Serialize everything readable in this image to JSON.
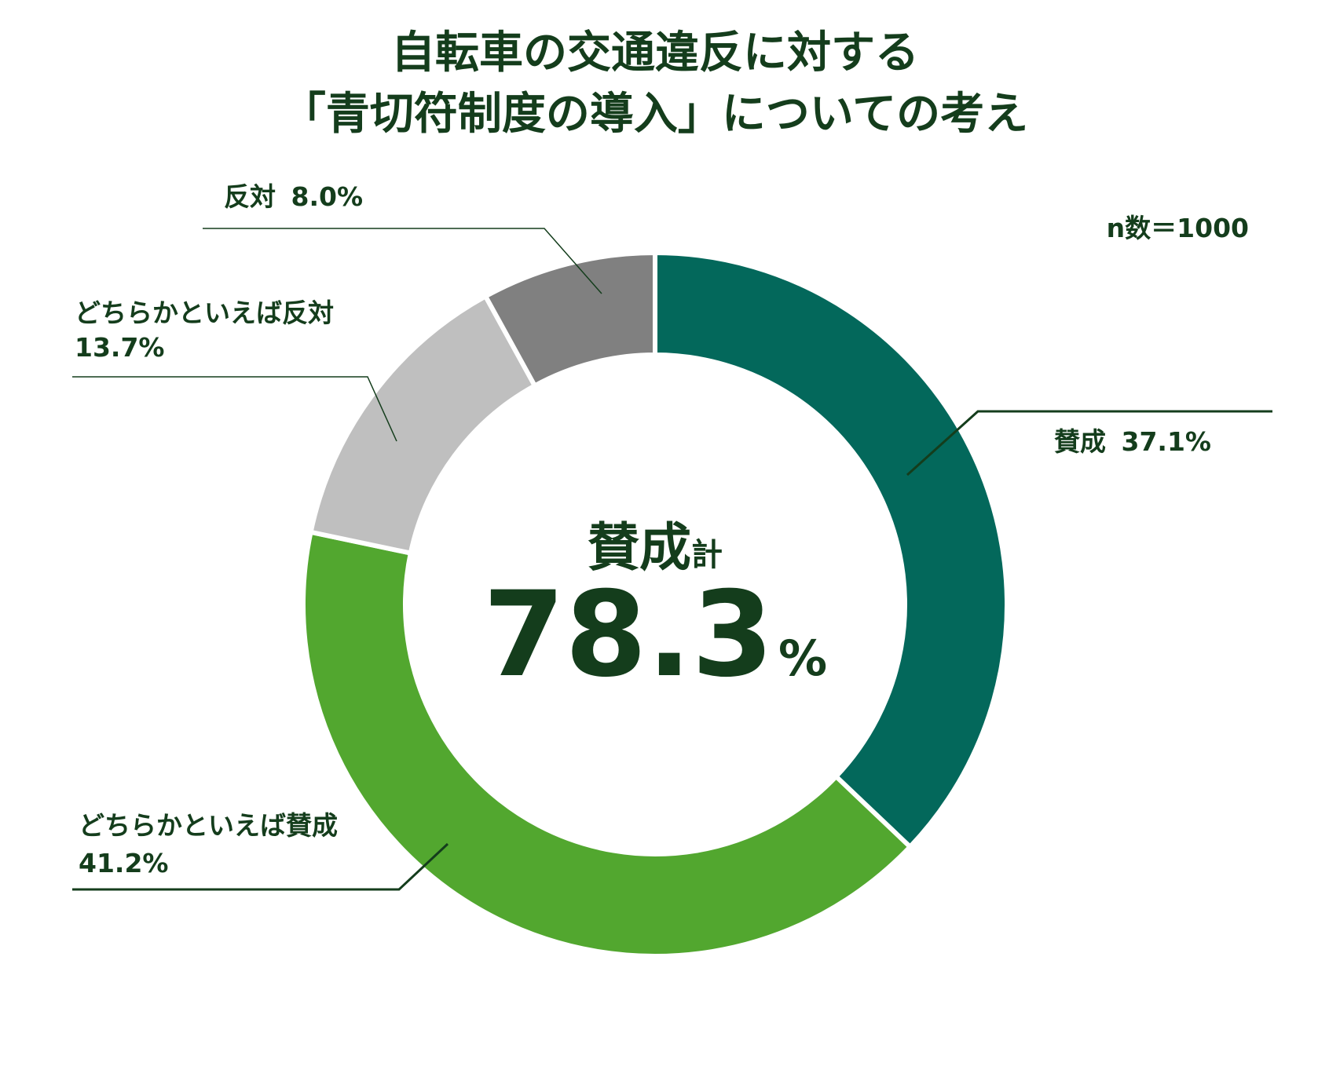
{
  "chart_data": {
    "type": "pie",
    "style": "donut",
    "title": [
      "自転車の交通違反に対する",
      "「青切符制度の導入」についての考え"
    ],
    "sample_size": "n数＝1000",
    "slices": [
      {
        "name": "賛成",
        "value": 37.1,
        "label": "37.1%",
        "color": "#03685b"
      },
      {
        "name": "どちらかといえば賛成",
        "value": 41.2,
        "label": "41.2%",
        "color": "#52a72f"
      },
      {
        "name": "どちらかといえば反対",
        "value": 13.7,
        "label": "13.7%",
        "color": "#bfbfbf"
      },
      {
        "name": "反対",
        "value": 8.0,
        "label": "8.0%",
        "color": "#808080"
      }
    ],
    "center": {
      "label": "賛成",
      "suffix": "計",
      "value": "78.3",
      "unit": "%"
    },
    "start_angle": "12 o'clock",
    "direction": "clockwise"
  }
}
